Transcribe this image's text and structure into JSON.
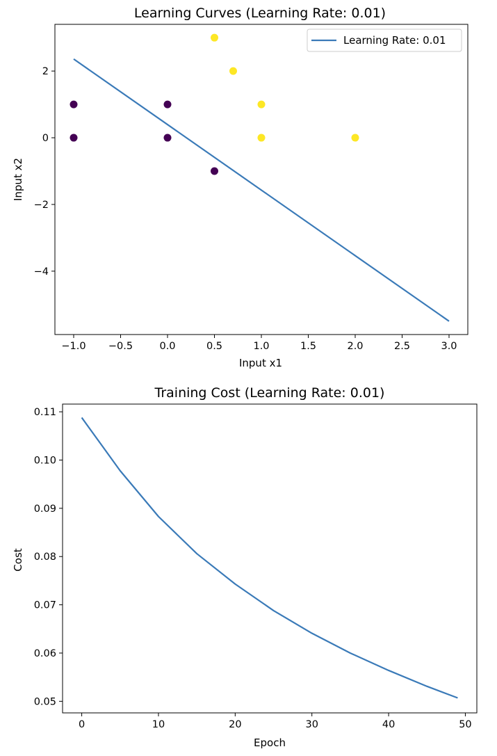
{
  "chart_data": [
    {
      "type": "scatter",
      "title": "Learning Curves (Learning Rate: 0.01)",
      "xlabel": "Input x1",
      "ylabel": "Input x2",
      "xlim": [
        -1.2,
        3.2
      ],
      "ylim": [
        -5.9,
        3.4
      ],
      "xticks": [
        -1.0,
        -0.5,
        0.0,
        0.5,
        1.0,
        1.5,
        2.0,
        2.5,
        3.0
      ],
      "xtick_labels": [
        "−1.0",
        "−0.5",
        "0.0",
        "0.5",
        "1.0",
        "1.5",
        "2.0",
        "2.5",
        "3.0"
      ],
      "yticks": [
        -4,
        -2,
        0,
        2
      ],
      "ytick_labels": [
        "−4",
        "−2",
        "0",
        "2"
      ],
      "points": [
        {
          "x": -1.0,
          "y": 1.0,
          "class": 0
        },
        {
          "x": -1.0,
          "y": 0.0,
          "class": 0
        },
        {
          "x": 0.0,
          "y": 1.0,
          "class": 0
        },
        {
          "x": 0.0,
          "y": 0.0,
          "class": 0
        },
        {
          "x": 0.5,
          "y": -1.0,
          "class": 0
        },
        {
          "x": 0.5,
          "y": 3.0,
          "class": 1
        },
        {
          "x": 0.7,
          "y": 2.0,
          "class": 1
        },
        {
          "x": 1.0,
          "y": 1.0,
          "class": 1
        },
        {
          "x": 1.0,
          "y": 0.0,
          "class": 1
        },
        {
          "x": 2.0,
          "y": 0.0,
          "class": 1
        }
      ],
      "class_colors": {
        "0": "#440154",
        "1": "#fde725"
      },
      "series": [
        {
          "name": "Learning Rate: 0.01",
          "type": "line",
          "x": [
            -1.0,
            3.0
          ],
          "y": [
            2.36,
            -5.5
          ],
          "color": "#3a7ab8"
        }
      ],
      "legend": "top-right",
      "grid": false
    },
    {
      "type": "line",
      "title": "Training Cost (Learning Rate: 0.01)",
      "xlabel": "Epoch",
      "ylabel": "Cost",
      "xlim": [
        -2.5,
        51.5
      ],
      "ylim": [
        0.0476,
        0.1116
      ],
      "xticks": [
        0,
        10,
        20,
        30,
        40,
        50
      ],
      "xtick_labels": [
        "0",
        "10",
        "20",
        "30",
        "40",
        "50"
      ],
      "yticks": [
        0.05,
        0.06,
        0.07,
        0.08,
        0.09,
        0.1,
        0.11
      ],
      "ytick_labels": [
        "0.05",
        "0.06",
        "0.07",
        "0.08",
        "0.09",
        "0.10",
        "0.11"
      ],
      "series": [
        {
          "type": "line",
          "x": [
            0,
            5,
            10,
            15,
            20,
            25,
            30,
            35,
            40,
            45,
            49
          ],
          "y": [
            0.1088,
            0.0978,
            0.0883,
            0.0806,
            0.0743,
            0.0688,
            0.0641,
            0.06,
            0.0564,
            0.0531,
            0.0507
          ],
          "color": "#3a7ab8"
        }
      ],
      "legend": "none",
      "grid": false
    }
  ]
}
